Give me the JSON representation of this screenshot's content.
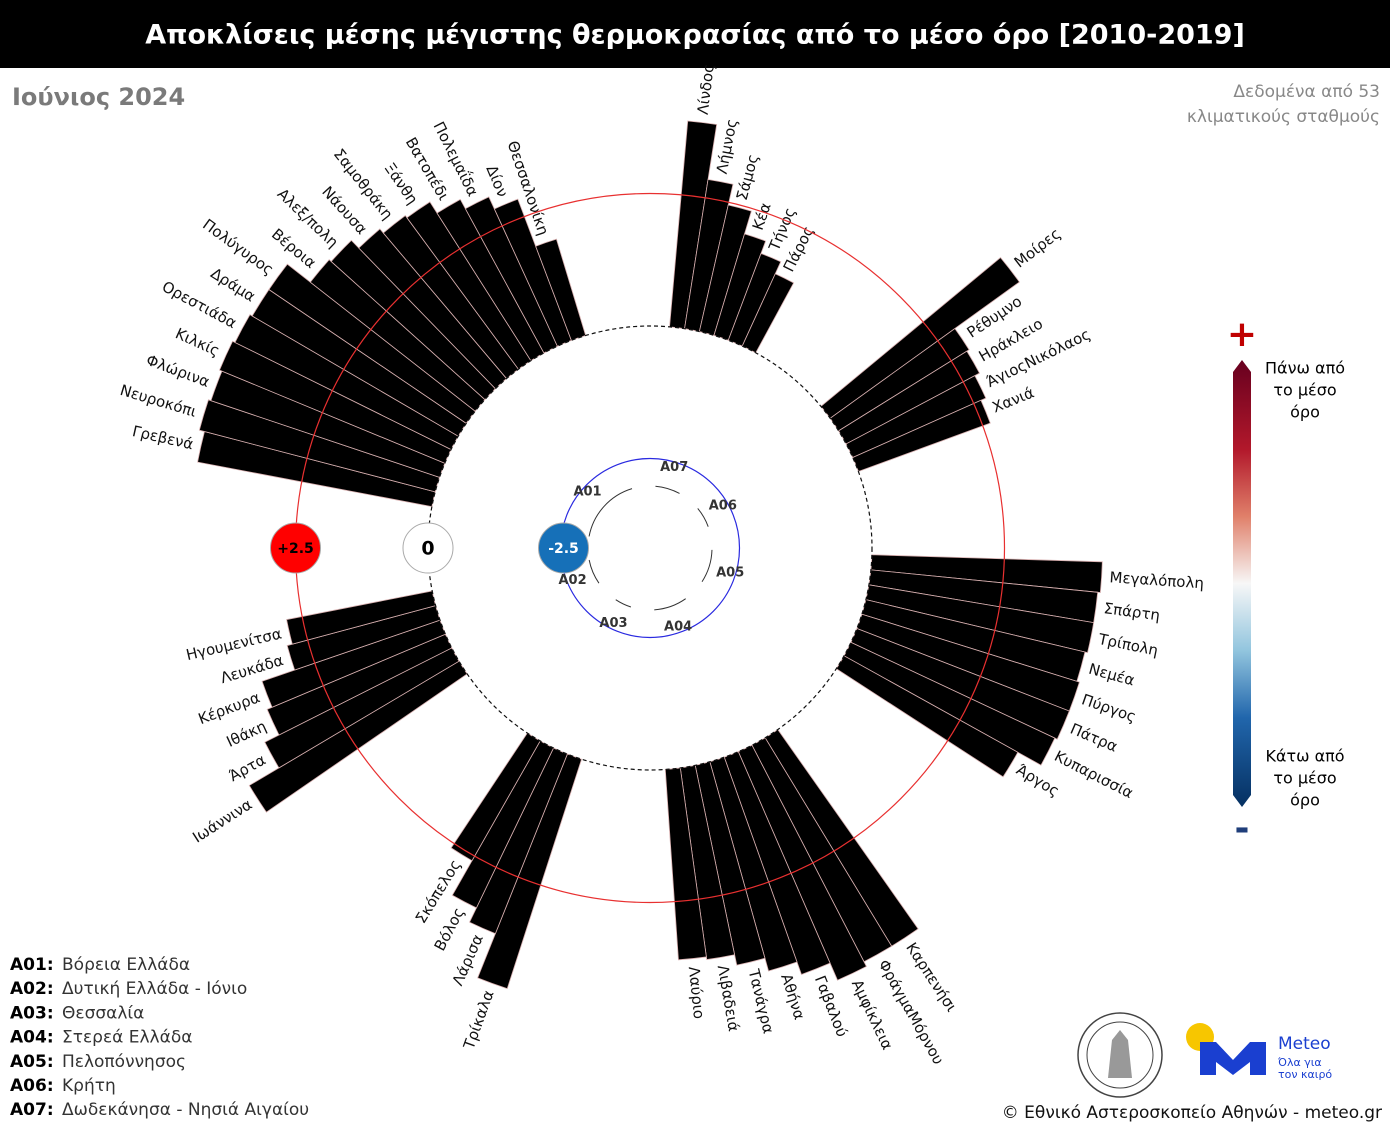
{
  "chart_data": {
    "type": "polar_bar",
    "title": "Αποκλίσεις μέσης μέγιστης θερμοκρασίας από το μέσο όρο [2010-2019]",
    "subtitle": "Ιούνιος 2024",
    "note": [
      "Δεδομένα από 53",
      "κλιματικούς σταθμούς"
    ],
    "ylim": [
      -4,
      5
    ],
    "yticks": [
      -2.5,
      0,
      {
        "value": 2.5,
        "label": "+2.5"
      }
    ],
    "clim": [
      -4.5,
      4.5
    ],
    "colorbar": {
      "plus": "+",
      "minus": "-",
      "top": [
        "Πάνω από",
        "το μέσο",
        "όρο"
      ],
      "bottom": [
        "Κάτω από",
        "το μέσο",
        "όρο"
      ]
    },
    "groups": [
      {
        "code": "A07",
        "categories": [
          "Λίνδος",
          "Λήμνος",
          "Σάμος",
          "Κέα",
          "Τήνος",
          "Πάρος"
        ],
        "values": [
          3.9,
          2.85,
          2.45,
          2.0,
          1.75,
          1.5
        ]
      },
      {
        "code": "A06",
        "categories": [
          "Μοίρες",
          "Ρέθυμνο",
          "Ηράκλειο",
          "ΆγιοςΝικόλαος",
          "Χανιά"
        ],
        "values": [
          4.4,
          2.9,
          2.85,
          2.75,
          2.65
        ]
      },
      {
        "code": "A05",
        "categories": [
          "Μεγαλόπολη",
          "Σπάρτη",
          "Τρίπολη",
          "Νεμέα",
          "Πύργος",
          "Πάτρα",
          "Κυπαρισσία",
          "Άργος"
        ],
        "values": [
          4.35,
          4.3,
          4.3,
          4.25,
          4.3,
          4.3,
          4.25,
          3.75
        ]
      },
      {
        "code": "A04",
        "categories": [
          "Καρπενήσι",
          "ΦράγμαΜόρνου",
          "Αμφίκλεια",
          "Γαβαλού",
          "Αθήνα",
          "Τανάγρα",
          "Λιβαδειά",
          "Λαύριο"
        ],
        "values": [
          4.6,
          4.6,
          4.7,
          4.35,
          4.1,
          3.85,
          3.65,
          3.6
        ]
      },
      {
        "code": "A03",
        "categories": [
          "Τρίκαλα",
          "Λάρισα",
          "Βόλος",
          "Σκόπελος"
        ],
        "values": [
          4.55,
          3.65,
          3.35,
          2.6
        ]
      },
      {
        "code": "A02",
        "categories": [
          "Ιωάννινα",
          "Άρτα",
          "Ιθάκη",
          "Κέρκυρα",
          "Λευκάδα",
          "Ηγουμενίτσα"
        ],
        "values": [
          4.6,
          3.95,
          3.65,
          3.55,
          2.9,
          2.8
        ]
      },
      {
        "code": "A01",
        "categories": [
          "Γρεβενά",
          "Νευροκόπι",
          "Φλώρινα",
          "Κιλκίς",
          "Ορεστιάδα",
          "Δράμα",
          "Πολύγυρος",
          "Βέροια",
          "Αλεξ/πολη",
          "Νάουσα",
          "Σαμοθράκη",
          "Ξάνθη",
          "Βατοπέδι",
          "Πολεμαΐδα",
          "Δίον",
          "Θεσσαλονίκη"
        ],
        "values": [
          4.5,
          4.6,
          4.55,
          4.6,
          4.55,
          4.5,
          4.5,
          3.95,
          3.9,
          3.7,
          3.6,
          3.55,
          3.3,
          3.1,
          2.85,
          1.9
        ]
      }
    ],
    "legend": [
      {
        "label": "A01:",
        "text": "Βόρεια Ελλάδα"
      },
      {
        "label": "A02:",
        "text": "Δυτική Ελλάδα - Ιόνιο"
      },
      {
        "label": "A03:",
        "text": "Θεσσαλία"
      },
      {
        "label": "A04:",
        "text": "Στερεά Ελλάδα"
      },
      {
        "label": "A05:",
        "text": "Πελοπόννησος"
      },
      {
        "label": "A06:",
        "text": "Κρήτη"
      },
      {
        "label": "A07:",
        "text": "Δωδεκάνησα - Νησιά Αιγαίου"
      }
    ],
    "logo": {
      "name": "Meteo",
      "slogan": [
        "Όλα για",
        "τον καιρό"
      ]
    },
    "footer": "© Εθνικό Αστεροσκοπείο Αθηνών - meteo.gr"
  }
}
